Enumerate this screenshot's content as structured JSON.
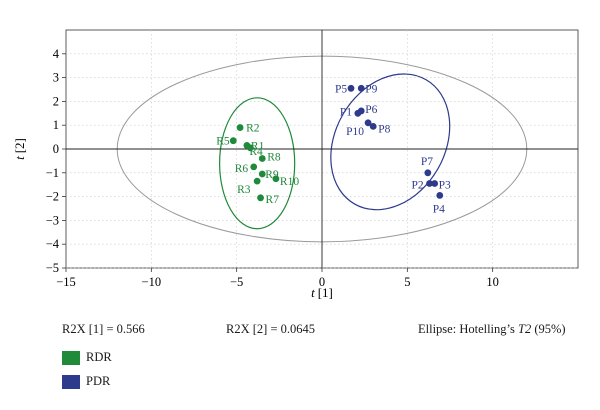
{
  "chart_data": {
    "type": "scatter",
    "xlabel_var": "t",
    "xlabel_idx": "[1]",
    "ylabel_var": "t",
    "ylabel_idx": "[2]",
    "xlim": [
      -15,
      15
    ],
    "ylim": [
      -5,
      5
    ],
    "xticks": [
      "−15",
      "−10",
      "−5",
      "0",
      "5",
      "10"
    ],
    "xtick_values": [
      -15,
      -10,
      -5,
      0,
      5,
      10
    ],
    "yticks": [
      "4",
      "3",
      "2",
      "1",
      "0",
      "−1",
      "−2",
      "−3",
      "−4",
      "−5"
    ],
    "ytick_values": [
      4,
      3,
      2,
      1,
      0,
      -1,
      -2,
      -3,
      -4,
      -5
    ],
    "grid": true,
    "series": [
      {
        "name": "RDR",
        "color": "#1e8a3a",
        "points": [
          {
            "label": "R2",
            "x": -4.8,
            "y": 0.9
          },
          {
            "label": "R5",
            "x": -5.2,
            "y": 0.35
          },
          {
            "label": "R1",
            "x": -4.4,
            "y": 0.15
          },
          {
            "label": "R4",
            "x": -4.2,
            "y": 0.05
          },
          {
            "label": "R8",
            "x": -3.5,
            "y": -0.4
          },
          {
            "label": "R6",
            "x": -4.0,
            "y": -0.75
          },
          {
            "label": "R9",
            "x": -3.5,
            "y": -1.05
          },
          {
            "label": "R10",
            "x": -2.7,
            "y": -1.25
          },
          {
            "label": "R3",
            "x": -3.8,
            "y": -1.35
          },
          {
            "label": "R7",
            "x": -3.6,
            "y": -2.05
          }
        ],
        "ellipse": {
          "cx": -3.8,
          "cy": -0.6,
          "rx": 2.2,
          "ry": 2.75,
          "angle": 0
        }
      },
      {
        "name": "PDR",
        "color": "#2e3a8c",
        "points": [
          {
            "label": "P5",
            "x": 1.7,
            "y": 2.55
          },
          {
            "label": "P9",
            "x": 2.3,
            "y": 2.55
          },
          {
            "label": "P1",
            "x": 2.1,
            "y": 1.5
          },
          {
            "label": "P6",
            "x": 2.3,
            "y": 1.6
          },
          {
            "label": "P10",
            "x": 2.7,
            "y": 1.1
          },
          {
            "label": "P8",
            "x": 3.0,
            "y": 0.95
          },
          {
            "label": "P7",
            "x": 6.2,
            "y": -1.0
          },
          {
            "label": "P2",
            "x": 6.3,
            "y": -1.45
          },
          {
            "label": "P3",
            "x": 6.6,
            "y": -1.45
          },
          {
            "label": "P4",
            "x": 6.9,
            "y": -1.95
          }
        ],
        "ellipse": {
          "cx": 4.0,
          "cy": 0.3,
          "rx": 4.2,
          "ry": 2.3,
          "angle": 60
        }
      }
    ],
    "hotelling_ellipse": {
      "cx": 0,
      "cy": 0,
      "rx": 12.0,
      "ry": 3.9,
      "color": "#9a9a9a"
    }
  },
  "stats": {
    "r2x1": "R2X [1] = 0.566",
    "r2x2": "R2X [2] = 0.0645",
    "ellipse_note_prefix": "Ellipse: Hotelling’s ",
    "ellipse_note_var": "T2",
    "ellipse_note_suffix": " (95%)"
  },
  "legend": [
    {
      "label": "RDR",
      "color": "#1e8a3a"
    },
    {
      "label": "PDR",
      "color": "#2e3a8c"
    }
  ]
}
